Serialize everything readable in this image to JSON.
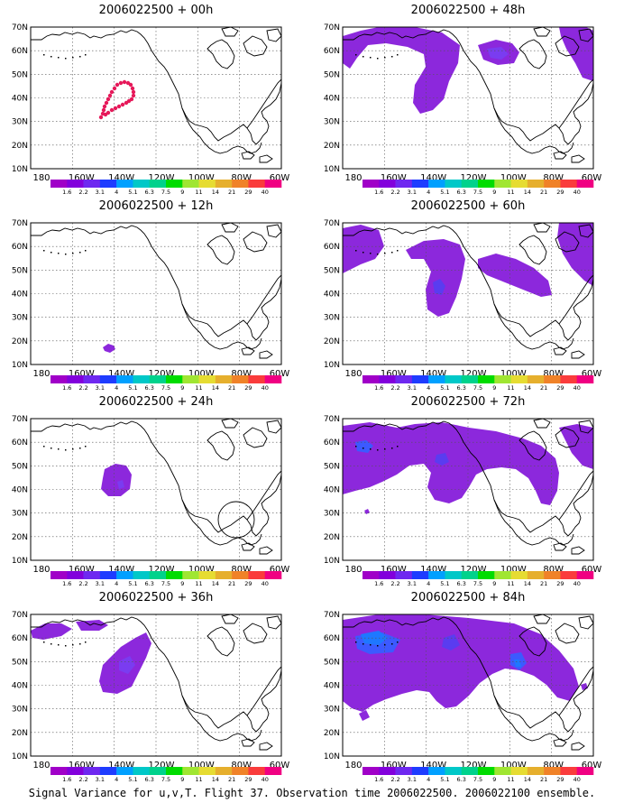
{
  "panels": [
    {
      "title": "2006022500 + 00h"
    },
    {
      "title": "2006022500 + 48h"
    },
    {
      "title": "2006022500 + 12h"
    },
    {
      "title": "2006022500 + 60h"
    },
    {
      "title": "2006022500 + 24h"
    },
    {
      "title": "2006022500 + 72h"
    },
    {
      "title": "2006022500 + 36h"
    },
    {
      "title": "2006022500 + 84h"
    }
  ],
  "lat_labels": [
    "70N",
    "60N",
    "50N",
    "40N",
    "30N",
    "20N",
    "10N"
  ],
  "lon_labels": [
    "180",
    "160W",
    "140W",
    "120W",
    "100W",
    "80W",
    "60W"
  ],
  "colorbar": {
    "colors": [
      "#a000c8",
      "#8200dc",
      "#6e28f0",
      "#1e3cff",
      "#00a0ff",
      "#00c8c8",
      "#00d28c",
      "#00dc00",
      "#a0e632",
      "#e6dc32",
      "#e6af2d",
      "#f08228",
      "#fa3c3c",
      "#f00082"
    ],
    "labels": [
      "1.6",
      "2.2",
      "3.1",
      "4",
      "5.1",
      "6.3",
      "7.5",
      "9",
      "11",
      "14",
      "21",
      "29",
      "40"
    ]
  },
  "caption": "Signal Variance for u,v,T. Flight 37. Observation time 2006022500. 2006022100 ensemble."
}
